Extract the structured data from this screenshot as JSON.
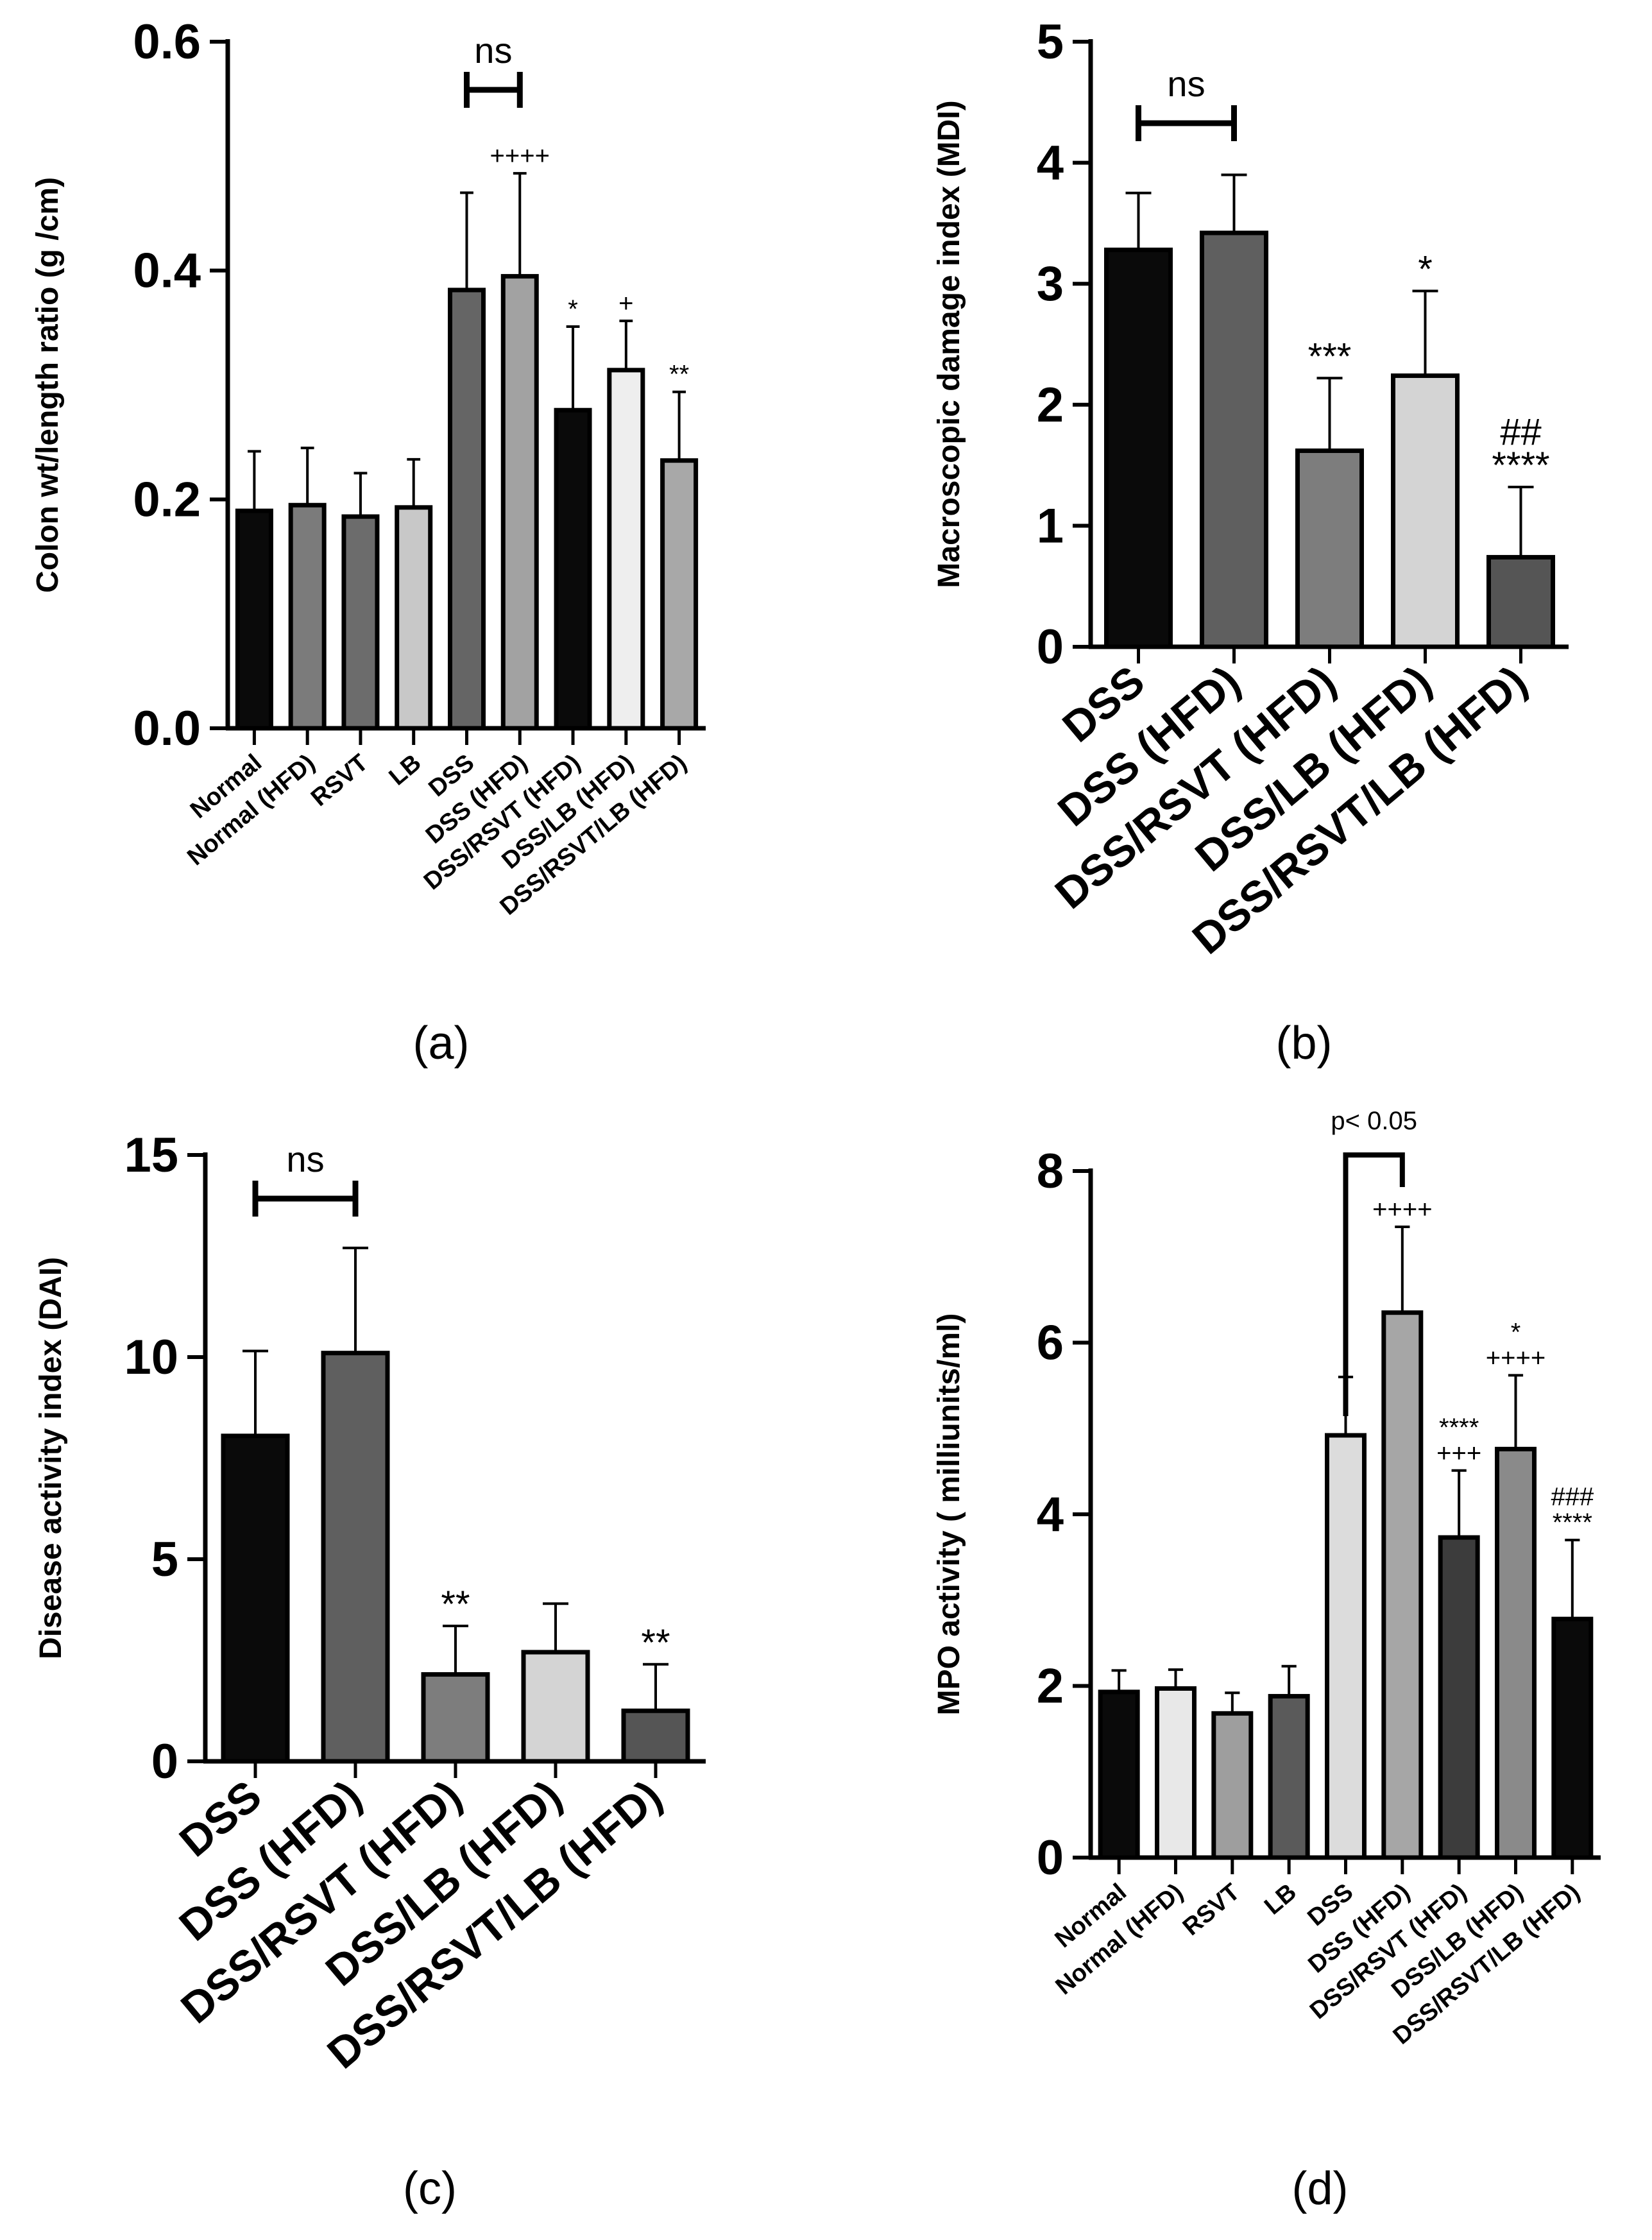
{
  "chart_data": [
    {
      "id": "a",
      "type": "bar",
      "panel_label": "(a)",
      "ylabel": "Colon wt/length ratio (g /cm)",
      "xlabel": "",
      "ylim": [
        0,
        0.6
      ],
      "yticks": [
        0.0,
        0.2,
        0.4,
        0.6
      ],
      "ytick_labels": [
        "0.0",
        "0.2",
        "0.4",
        "0.6"
      ],
      "grid": false,
      "categories": [
        "Normal",
        "Normal (HFD)",
        "RSVT",
        "LB",
        "DSS",
        "DSS (HFD)",
        "DSS/RSVT (HFD)",
        "DSS/LB (HFD)",
        "DSS/RSVT/LB (HFD)"
      ],
      "values": [
        0.19,
        0.195,
        0.185,
        0.193,
        0.383,
        0.395,
        0.278,
        0.313,
        0.234
      ],
      "errors": [
        0.052,
        0.05,
        0.038,
        0.042,
        0.085,
        0.09,
        0.073,
        0.043,
        0.06
      ],
      "colors": [
        "#0a0a0a",
        "#7b7b7b",
        "#6c6c6c",
        "#c8c8c8",
        "#656565",
        "#a2a2a2",
        "#0a0a0a",
        "#eeeeee",
        "#a8a8a8"
      ],
      "annotations": [
        "",
        "",
        "",
        "",
        "",
        "++++",
        "*",
        "+",
        "**"
      ],
      "bracket": {
        "from": 4,
        "to": 5,
        "label": "ns"
      }
    },
    {
      "id": "b",
      "type": "bar",
      "panel_label": "(b)",
      "ylabel": "Macroscopic damage index (MDI)",
      "xlabel": "",
      "ylim": [
        0,
        5
      ],
      "yticks": [
        0,
        1,
        2,
        3,
        4,
        5
      ],
      "ytick_labels": [
        "0",
        "1",
        "2",
        "3",
        "4",
        "5"
      ],
      "grid": false,
      "categories": [
        "DSS",
        "DSS (HFD)",
        "DSS/RSVT (HFD)",
        "DSS/LB (HFD)",
        "DSS/RSVT/LB (HFD)"
      ],
      "values": [
        3.28,
        3.42,
        1.62,
        2.24,
        0.74
      ],
      "errors": [
        0.47,
        0.48,
        0.6,
        0.7,
        0.58
      ],
      "colors": [
        "#0a0a0a",
        "#5f5f5f",
        "#7d7d7d",
        "#d4d4d4",
        "#555555"
      ],
      "annotations": [
        "",
        "",
        "***",
        "*",
        "##\n****"
      ],
      "bracket": {
        "from": 0,
        "to": 1,
        "label": "ns"
      }
    },
    {
      "id": "c",
      "type": "bar",
      "panel_label": "(c)",
      "ylabel": "Disease activity index (DAI)",
      "xlabel": "",
      "ylim": [
        0,
        15
      ],
      "yticks": [
        0,
        5,
        10,
        15
      ],
      "ytick_labels": [
        "0",
        "5",
        "10",
        "15"
      ],
      "grid": false,
      "categories": [
        "DSS",
        "DSS (HFD)",
        "DSS/RSVT (HFD)",
        "DSS/LB (HFD)",
        "DSS/RSVT/LB (HFD)"
      ],
      "values": [
        8.05,
        10.1,
        2.15,
        2.7,
        1.25
      ],
      "errors": [
        2.1,
        2.6,
        1.2,
        1.2,
        1.15
      ],
      "colors": [
        "#0a0a0a",
        "#5f5f5f",
        "#7d7d7d",
        "#d4d4d4",
        "#555555"
      ],
      "annotations": [
        "",
        "",
        "**",
        "",
        "**"
      ],
      "bracket": {
        "from": 0,
        "to": 1,
        "label": "ns"
      }
    },
    {
      "id": "d",
      "type": "bar",
      "panel_label": "(d)",
      "ylabel": "MPO activity ( milliunits/ml)",
      "xlabel": "",
      "ylim": [
        0,
        8
      ],
      "yticks": [
        0,
        2,
        4,
        6,
        8
      ],
      "ytick_labels": [
        "0",
        "2",
        "4",
        "6",
        "8"
      ],
      "grid": false,
      "categories": [
        "Normal",
        "Normal (HFD)",
        "RSVT",
        "LB",
        "DSS",
        "DSS (HFD)",
        "DSS/RSVT (HFD)",
        "DSS/LB (HFD)",
        "DSS/RSVT/LB (HFD)"
      ],
      "values": [
        1.93,
        1.97,
        1.68,
        1.88,
        4.92,
        6.35,
        3.73,
        4.76,
        2.78
      ],
      "errors": [
        0.25,
        0.22,
        0.24,
        0.35,
        0.68,
        1.0,
        0.78,
        0.86,
        0.92
      ],
      "colors": [
        "#0a0a0a",
        "#e8e8e8",
        "#9e9e9e",
        "#5a5a5a",
        "#dcdcdc",
        "#a6a6a6",
        "#3c3c3c",
        "#8a8a8a",
        "#0a0a0a"
      ],
      "annotations": [
        "",
        "",
        "",
        "",
        "",
        "++++",
        "****\n+++",
        "*\n++++",
        "###\n****"
      ],
      "bracket": {
        "from": 4,
        "to": 5,
        "label": "p< 0.05"
      }
    }
  ]
}
